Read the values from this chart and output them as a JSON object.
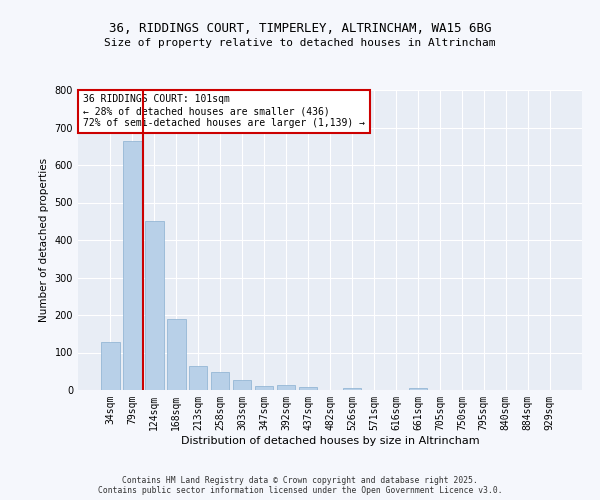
{
  "title1": "36, RIDDINGS COURT, TIMPERLEY, ALTRINCHAM, WA15 6BG",
  "title2": "Size of property relative to detached houses in Altrincham",
  "xlabel": "Distribution of detached houses by size in Altrincham",
  "ylabel": "Number of detached properties",
  "categories": [
    "34sqm",
    "79sqm",
    "124sqm",
    "168sqm",
    "213sqm",
    "258sqm",
    "303sqm",
    "347sqm",
    "392sqm",
    "437sqm",
    "482sqm",
    "526sqm",
    "571sqm",
    "616sqm",
    "661sqm",
    "705sqm",
    "750sqm",
    "795sqm",
    "840sqm",
    "884sqm",
    "929sqm"
  ],
  "values": [
    127,
    663,
    452,
    190,
    63,
    47,
    28,
    12,
    14,
    8,
    0,
    5,
    0,
    0,
    5,
    0,
    0,
    0,
    0,
    0,
    0
  ],
  "bar_color": "#b8d0e8",
  "bar_edge_color": "#8ab0d0",
  "vline_x": 1.5,
  "vline_color": "#cc0000",
  "annotation_text": "36 RIDDINGS COURT: 101sqm\n← 28% of detached houses are smaller (436)\n72% of semi-detached houses are larger (1,139) →",
  "annotation_box_color": "#cc0000",
  "ylim": [
    0,
    800
  ],
  "yticks": [
    0,
    100,
    200,
    300,
    400,
    500,
    600,
    700,
    800
  ],
  "fig_background": "#f5f7fc",
  "ax_background": "#e8edf5",
  "grid_color": "#ffffff",
  "footer1": "Contains HM Land Registry data © Crown copyright and database right 2025.",
  "footer2": "Contains public sector information licensed under the Open Government Licence v3.0."
}
